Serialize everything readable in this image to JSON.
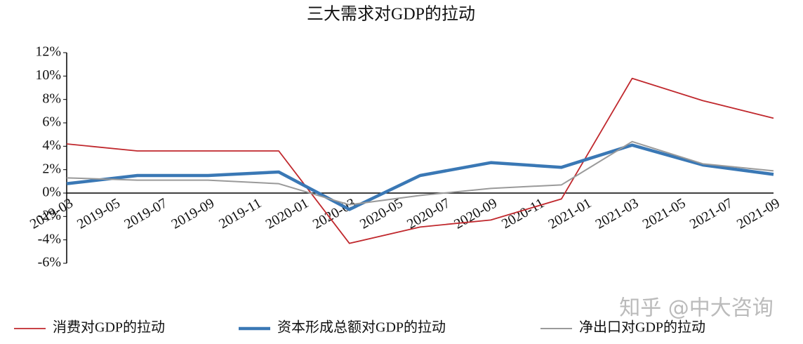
{
  "chart_data": {
    "type": "line",
    "title": "三大需求对GDP的拉动",
    "x": [
      "2019-03",
      "2019-06",
      "2019-09",
      "2019-12",
      "2020-03",
      "2020-06",
      "2020-09",
      "2020-12",
      "2021-03",
      "2021-06",
      "2021-09"
    ],
    "xlim": [
      "2019-03",
      "2021-09"
    ],
    "xticks": [
      "2019-03",
      "2019-05",
      "2019-07",
      "2019-09",
      "2019-11",
      "2020-01",
      "2020-03",
      "2020-05",
      "2020-07",
      "2020-09",
      "2020-11",
      "2021-01",
      "2021-03",
      "2021-05",
      "2021-07",
      "2021-09"
    ],
    "ylim": [
      -6,
      12
    ],
    "yticks": [
      {
        "value": -6,
        "label": "-6%"
      },
      {
        "value": -4,
        "label": "-4%"
      },
      {
        "value": -2,
        "label": "-2%"
      },
      {
        "value": 0,
        "label": "0%"
      },
      {
        "value": 2,
        "label": "2%"
      },
      {
        "value": 4,
        "label": "4%"
      },
      {
        "value": 6,
        "label": "6%"
      },
      {
        "value": 8,
        "label": "8%"
      },
      {
        "value": 10,
        "label": "10%"
      },
      {
        "value": 12,
        "label": "12%"
      }
    ],
    "series": [
      {
        "name": "消费对GDP的拉动",
        "color": "#c0282d",
        "values": [
          4.2,
          3.6,
          3.6,
          3.6,
          -4.3,
          -2.9,
          -2.3,
          -0.5,
          9.8,
          7.9,
          6.4
        ]
      },
      {
        "name": "资本形成总额对GDP的拉动",
        "color": "#3a78b5",
        "values": [
          0.8,
          1.5,
          1.5,
          1.8,
          -1.4,
          1.5,
          2.6,
          2.2,
          4.1,
          2.4,
          1.6
        ]
      },
      {
        "name": "净出口对GDP的拉动",
        "color": "#9a9a9a",
        "values": [
          1.3,
          1.1,
          1.1,
          0.8,
          -1.0,
          -0.2,
          0.4,
          0.7,
          4.4,
          2.5,
          1.9
        ]
      }
    ],
    "legend": "bottom",
    "watermark": "知乎 @中大咨询"
  }
}
